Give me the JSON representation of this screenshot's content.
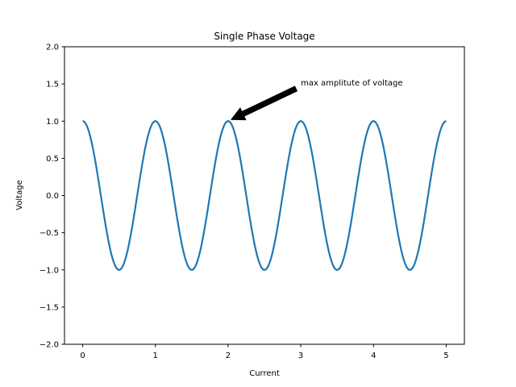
{
  "chart_data": {
    "type": "line",
    "title": "Single Phase Voltage",
    "xlabel": "Current",
    "ylabel": "Voltage",
    "xlim": [
      -0.25,
      5.25
    ],
    "ylim": [
      -2.0,
      2.0
    ],
    "xticks": [
      0,
      1,
      2,
      3,
      4,
      5
    ],
    "xtick_labels": [
      "0",
      "1",
      "2",
      "3",
      "4",
      "5"
    ],
    "yticks": [
      2.0,
      1.5,
      1.0,
      0.5,
      0.0,
      -0.5,
      -1.0,
      -1.5,
      -2.0
    ],
    "ytick_labels": [
      "2.0",
      "1.5",
      "1.0",
      "0.5",
      "0.0",
      "−0.5",
      "−1.0",
      "−1.5",
      "−2.0"
    ],
    "grid": false,
    "legend": null,
    "series": [
      {
        "name": "voltage",
        "color": "#1f77b4",
        "function": "cos(2*pi*x)",
        "x_range": [
          0,
          5
        ],
        "x": [
          0,
          0.25,
          0.5,
          0.75,
          1,
          1.25,
          1.5,
          1.75,
          2,
          2.25,
          2.5,
          2.75,
          3,
          3.25,
          3.5,
          3.75,
          4,
          4.25,
          4.5,
          4.75,
          5
        ],
        "values": [
          1,
          0,
          -1,
          0,
          1,
          0,
          -1,
          0,
          1,
          0,
          -1,
          0,
          1,
          0,
          -1,
          0,
          1,
          0,
          -1,
          0,
          1
        ]
      }
    ],
    "annotations": [
      {
        "text": "max amplitute of voltage",
        "xy": [
          2,
          1
        ],
        "xytext": [
          3,
          1.5
        ],
        "arrow": true,
        "arrow_color": "#000000"
      }
    ]
  }
}
